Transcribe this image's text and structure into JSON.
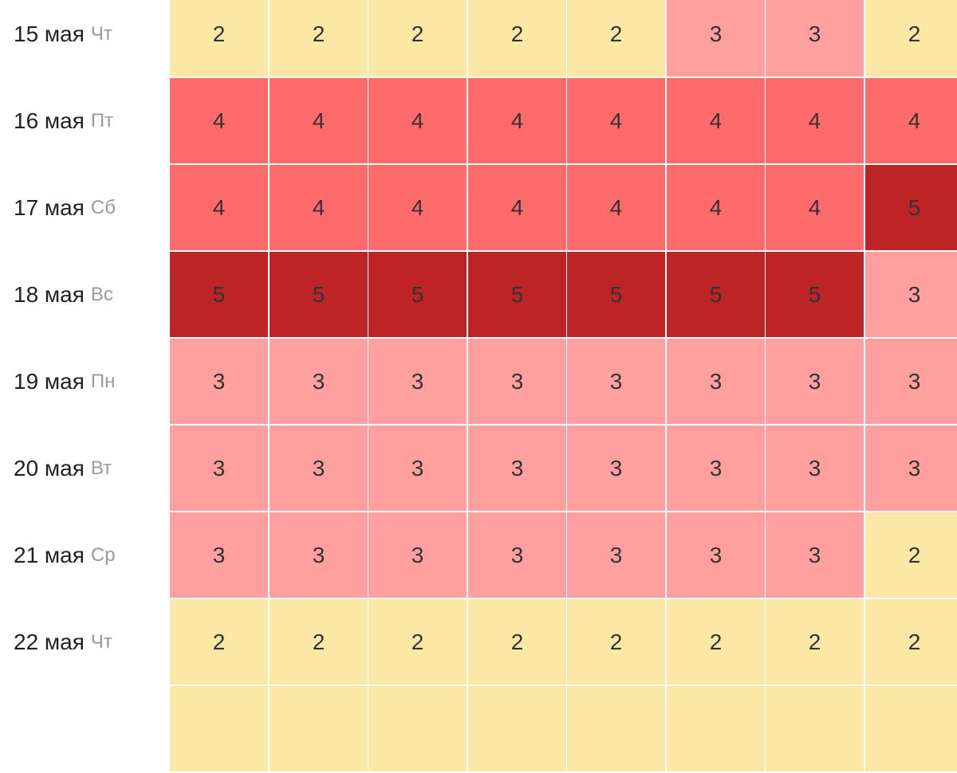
{
  "colors": {
    "level_2": "#fbe8a6",
    "level_3": "#ff9f9f",
    "level_4": "#ff6b6b",
    "level_5": "#bd2426",
    "date_text": "#222222",
    "weekday_text": "#9a9a9a"
  },
  "rows": [
    {
      "date": "15 мая",
      "weekday": "Чт",
      "values": [
        "2",
        "2",
        "2",
        "2",
        "2",
        "3",
        "3",
        "2"
      ]
    },
    {
      "date": "16 мая",
      "weekday": "Пт",
      "values": [
        "4",
        "4",
        "4",
        "4",
        "4",
        "4",
        "4",
        "4"
      ]
    },
    {
      "date": "17 мая",
      "weekday": "Сб",
      "values": [
        "4",
        "4",
        "4",
        "4",
        "4",
        "4",
        "4",
        "5"
      ]
    },
    {
      "date": "18 мая",
      "weekday": "Вс",
      "values": [
        "5",
        "5",
        "5",
        "5",
        "5",
        "5",
        "5",
        "3"
      ]
    },
    {
      "date": "19 мая",
      "weekday": "Пн",
      "values": [
        "3",
        "3",
        "3",
        "3",
        "3",
        "3",
        "3",
        "3"
      ]
    },
    {
      "date": "20 мая",
      "weekday": "Вт",
      "values": [
        "3",
        "3",
        "3",
        "3",
        "3",
        "3",
        "3",
        "3"
      ]
    },
    {
      "date": "21 мая",
      "weekday": "Ср",
      "values": [
        "3",
        "3",
        "3",
        "3",
        "3",
        "3",
        "3",
        "2"
      ]
    },
    {
      "date": "22 мая",
      "weekday": "Чт",
      "values": [
        "2",
        "2",
        "2",
        "2",
        "2",
        "2",
        "2",
        "2"
      ]
    },
    {
      "date": "",
      "weekday": "",
      "values": [
        "",
        "",
        "",
        "",
        "",
        "",
        "",
        ""
      ]
    }
  ]
}
